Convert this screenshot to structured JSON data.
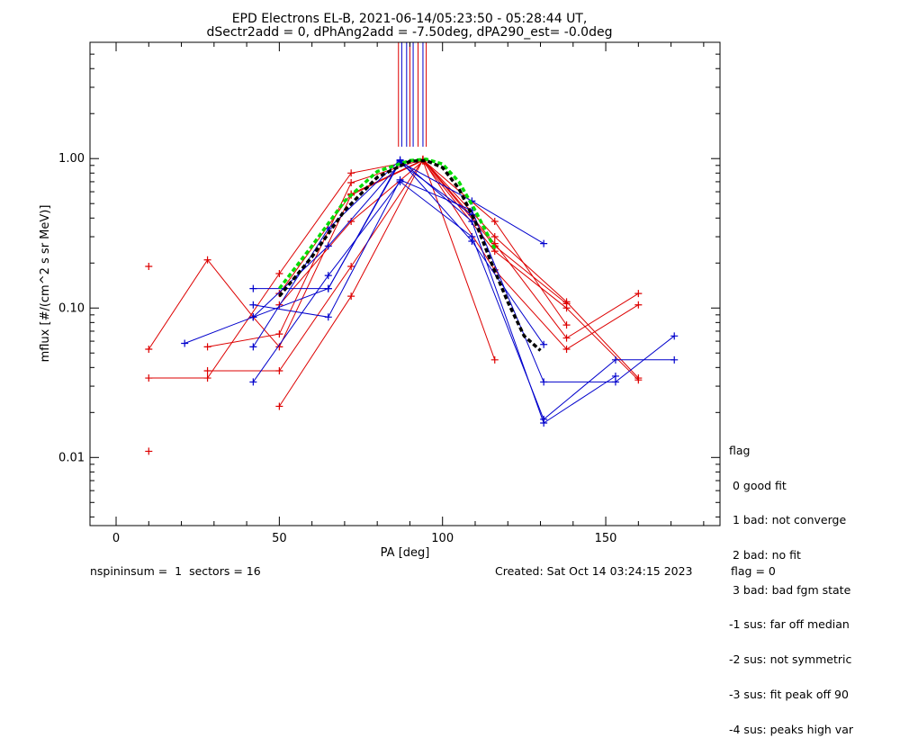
{
  "chart_data": {
    "type": "scatter",
    "title_line1": "EPD Electrons EL-B, 2021-06-14/05:23:50 - 05:28:44 UT,",
    "title_line2": "dSectr2add = 0, dPhAng2add = -7.50deg, dPA290_est=  -0.0deg",
    "xlabel": "PA [deg]",
    "ylabel": "mflux [#/(cm^2 s sr MeV)]",
    "xlim": [
      -8,
      185
    ],
    "ylim": [
      0.0035,
      6
    ],
    "yscale": "log",
    "x_ticks": [
      0,
      50,
      100,
      150
    ],
    "x_tick_labels": [
      "0",
      "50",
      "100",
      "150"
    ],
    "y_ticks": [
      0.01,
      0.1,
      1.0
    ],
    "y_tick_labels": [
      "0.01",
      "0.10",
      "1.00"
    ],
    "colors": {
      "red": "#dd0000",
      "blue": "#0000cc",
      "fit_black": "#000000",
      "fit_green": "#00dd00"
    },
    "red_series": [
      {
        "points": [
          [
            10,
            0.053
          ],
          [
            28,
            0.21
          ],
          [
            42,
            0.087
          ],
          [
            50,
            0.055
          ],
          [
            72,
            0.57
          ],
          [
            94,
            0.97
          ],
          [
            116,
            0.045
          ]
        ]
      },
      {
        "points": [
          [
            10,
            0.034
          ],
          [
            28,
            0.034
          ],
          [
            50,
            0.17
          ],
          [
            72,
            0.8
          ],
          [
            94,
            0.99
          ],
          [
            116,
            0.3
          ],
          [
            138,
            0.11
          ],
          [
            160,
            0.034
          ]
        ]
      },
      {
        "points": [
          [
            28,
            0.038
          ],
          [
            50,
            0.038
          ],
          [
            72,
            0.19
          ],
          [
            94,
            0.98
          ],
          [
            116,
            0.38
          ],
          [
            138,
            0.077
          ]
        ]
      },
      {
        "points": [
          [
            28,
            0.055
          ],
          [
            50,
            0.067
          ],
          [
            72,
            0.69
          ],
          [
            94,
            0.99
          ],
          [
            116,
            0.27
          ],
          [
            138,
            0.063
          ],
          [
            160,
            0.125
          ]
        ]
      },
      {
        "points": [
          [
            50,
            0.022
          ],
          [
            72,
            0.12
          ],
          [
            94,
            0.98
          ],
          [
            116,
            0.18
          ],
          [
            138,
            0.053
          ],
          [
            160,
            0.105
          ]
        ]
      },
      {
        "points": [
          [
            50,
            0.105
          ],
          [
            72,
            0.38
          ],
          [
            94,
            0.96
          ],
          [
            116,
            0.24
          ],
          [
            138,
            0.1
          ],
          [
            160,
            0.033
          ]
        ]
      },
      {
        "points": [
          [
            50,
            0.125
          ],
          [
            72,
            0.58
          ],
          [
            94,
            0.98
          ],
          [
            116,
            0.26
          ],
          [
            138,
            0.107
          ]
        ]
      }
    ],
    "red_isolated": [
      [
        10,
        0.19
      ],
      [
        10,
        0.011
      ]
    ],
    "blue_series": [
      {
        "points": [
          [
            21,
            0.058
          ],
          [
            42,
            0.087
          ],
          [
            65,
            0.135
          ],
          [
            87,
            0.97
          ],
          [
            109,
            0.28
          ],
          [
            131,
            0.057
          ]
        ]
      },
      {
        "points": [
          [
            42,
            0.135
          ],
          [
            65,
            0.135
          ],
          [
            87,
            0.95
          ],
          [
            109,
            0.52
          ],
          [
            131,
            0.27
          ]
        ]
      },
      {
        "points": [
          [
            42,
            0.105
          ],
          [
            65,
            0.087
          ],
          [
            87,
            0.72
          ],
          [
            109,
            0.45
          ],
          [
            131,
            0.032
          ],
          [
            153,
            0.032
          ],
          [
            171,
            0.065
          ]
        ]
      },
      {
        "points": [
          [
            42,
            0.055
          ],
          [
            65,
            0.34
          ],
          [
            87,
            0.98
          ],
          [
            109,
            0.38
          ],
          [
            131,
            0.017
          ],
          [
            153,
            0.035
          ]
        ]
      },
      {
        "points": [
          [
            42,
            0.032
          ],
          [
            65,
            0.165
          ],
          [
            87,
            0.7
          ],
          [
            109,
            0.3
          ],
          [
            131,
            0.018
          ],
          [
            153,
            0.045
          ],
          [
            171,
            0.045
          ]
        ]
      },
      {
        "points": [
          [
            42,
            0.087
          ],
          [
            65,
            0.26
          ],
          [
            87,
            0.93
          ],
          [
            109,
            0.42
          ]
        ]
      }
    ],
    "fit_black": {
      "points": [
        [
          50,
          0.12
        ],
        [
          60,
          0.22
        ],
        [
          70,
          0.45
        ],
        [
          80,
          0.75
        ],
        [
          90,
          0.96
        ],
        [
          95,
          0.97
        ],
        [
          100,
          0.87
        ],
        [
          105,
          0.63
        ],
        [
          110,
          0.38
        ],
        [
          115,
          0.2
        ],
        [
          120,
          0.11
        ],
        [
          125,
          0.065
        ],
        [
          130,
          0.052
        ]
      ]
    },
    "fit_green": {
      "points": [
        [
          50,
          0.135
        ],
        [
          60,
          0.26
        ],
        [
          70,
          0.52
        ],
        [
          80,
          0.82
        ],
        [
          90,
          0.97
        ],
        [
          95,
          0.99
        ],
        [
          100,
          0.92
        ],
        [
          105,
          0.7
        ],
        [
          110,
          0.45
        ],
        [
          116,
          0.25
        ]
      ]
    },
    "top_lines_red": [
      86.5,
      90.0,
      92.5,
      95.0
    ],
    "top_lines_blue": [
      87.5,
      89.0,
      91.0,
      94.0
    ],
    "top_lines_from_y": 1.2
  },
  "legend": {
    "heading": "flag",
    "items": [
      " 0 good fit",
      " 1 bad: not converge",
      " 2 bad: no fit",
      " 3 bad: bad fgm state",
      "-1 sus: far off median",
      "-2 sus: not symmetric",
      "-3 sus: fit peak off 90",
      "-4 sus: peaks high var"
    ]
  },
  "footer": {
    "left": "nspininsum =  1  sectors = 16",
    "created": "Created: Sat Oct 14 03:24:15 2023",
    "flag": "flag = 0"
  }
}
